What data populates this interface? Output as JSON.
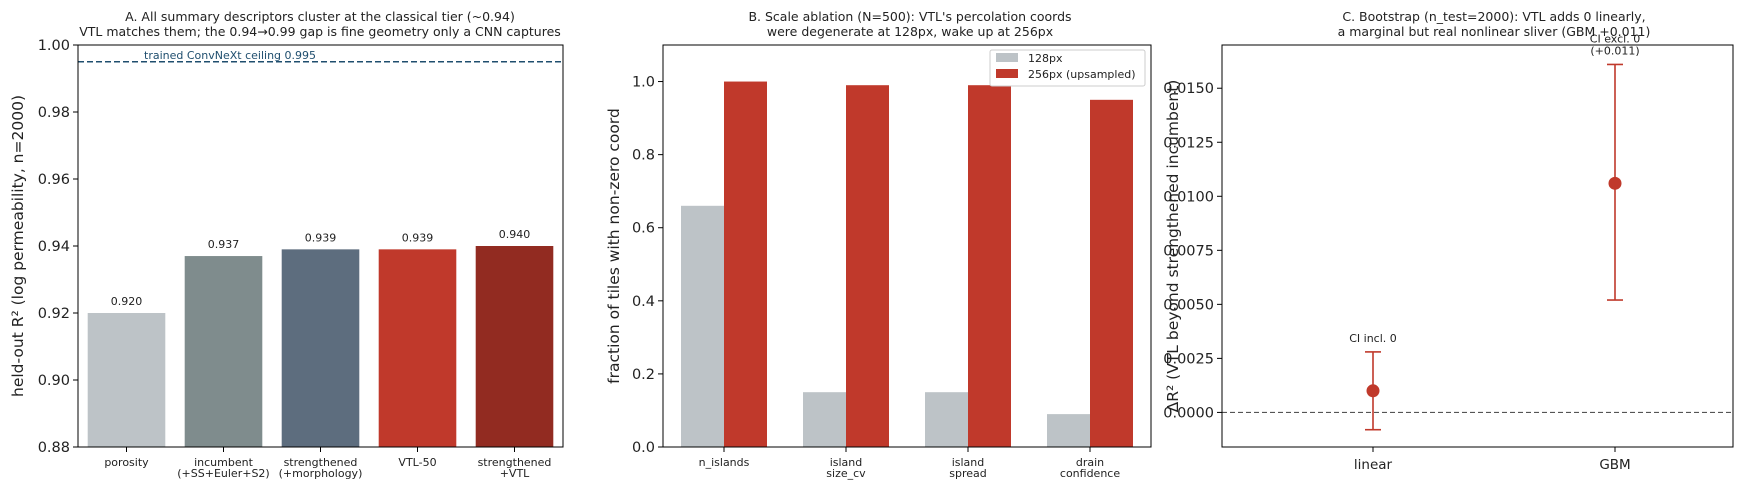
{
  "colors": {
    "gray_light": "#bdc3c7",
    "gray_teal": "#7f8c8d",
    "slate": "#5d6d7e",
    "red": "#c0392b",
    "dark_red": "#922b21",
    "ceiling": "#1f4e6e",
    "zero_line": "#555555"
  },
  "chart_data": [
    {
      "type": "bar",
      "title_lines": [
        "A. All summary descriptors cluster at the classical tier (~0.94)",
        "VTL matches them; the 0.94→0.99 gap is fine geometry only a CNN captures"
      ],
      "ylabel": "held-out R²  (log permeability, n=2000)",
      "ylim": [
        0.88,
        1.0
      ],
      "yticks": [
        "0.88",
        "0.90",
        "0.92",
        "0.94",
        "0.96",
        "0.98",
        "1.00"
      ],
      "categories": [
        [
          "porosity"
        ],
        [
          "incumbent",
          "(+SS+Euler+S2)"
        ],
        [
          "strengthened",
          "(+morphology)"
        ],
        [
          "VTL-50"
        ],
        [
          "strengthened",
          "+VTL"
        ]
      ],
      "values": [
        0.92,
        0.937,
        0.939,
        0.939,
        0.94
      ],
      "value_labels": [
        "0.920",
        "0.937",
        "0.939",
        "0.939",
        "0.940"
      ],
      "bar_colors": [
        "#bdc3c7",
        "#7f8c8d",
        "#5d6d7e",
        "#c0392b",
        "#922b21"
      ],
      "reference_line": {
        "value": 0.995,
        "label": "trained ConvNeXt ceiling 0.995"
      }
    },
    {
      "type": "bar",
      "title_lines": [
        "B. Scale ablation (N=500): VTL's percolation coords",
        "were degenerate at 128px, wake up at 256px"
      ],
      "ylabel": "fraction of tiles with non-zero coord",
      "ylim": [
        0.0,
        1.1
      ],
      "yticks": [
        "0.0",
        "0.2",
        "0.4",
        "0.6",
        "0.8",
        "1.0"
      ],
      "categories": [
        [
          "n_islands"
        ],
        [
          "island",
          "size_cv"
        ],
        [
          "island",
          "spread"
        ],
        [
          "drain",
          "confidence"
        ]
      ],
      "series": [
        {
          "name": "128px",
          "color": "#bdc3c7",
          "values": [
            0.66,
            0.15,
            0.15,
            0.09
          ]
        },
        {
          "name": "256px (upsampled)",
          "color": "#c0392b",
          "values": [
            1.0,
            0.99,
            0.99,
            0.95
          ]
        }
      ],
      "legend": "top-right"
    },
    {
      "type": "scatter",
      "title_lines": [
        "C. Bootstrap (n_test=2000): VTL adds 0 linearly,",
        "a marginal but real nonlinear sliver (GBM +0.011)"
      ],
      "ylabel": "ΔR²  (VTL beyond strengthened incumbent)",
      "ylim": [
        -0.0016,
        0.017
      ],
      "yticks": [
        "0.0000",
        "0.0025",
        "0.0050",
        "0.0075",
        "0.0100",
        "0.0125",
        "0.0150"
      ],
      "categories": [
        "linear",
        "GBM"
      ],
      "points": [
        {
          "label": "linear",
          "value": 0.001,
          "ci": [
            -0.0008,
            0.0028
          ],
          "annotation": [
            "CI incl. 0"
          ]
        },
        {
          "label": "GBM",
          "value": 0.0106,
          "ci": [
            0.0052,
            0.0161
          ],
          "annotation": [
            "CI excl. 0",
            "(+0.011)"
          ]
        }
      ],
      "reference_line": {
        "value": 0.0
      }
    }
  ]
}
